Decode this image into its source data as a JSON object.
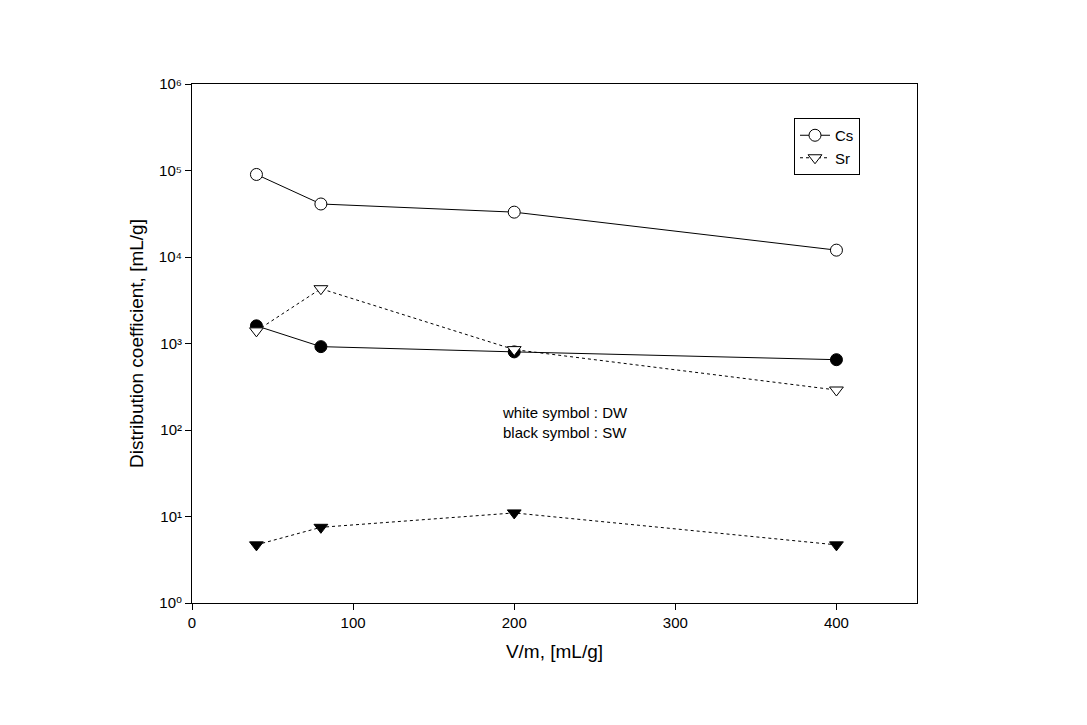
{
  "chart_data": {
    "type": "line",
    "x_label": "V/m, [mL/g]",
    "y_label": "Distribution coefficient, [mL/g]",
    "x": [
      40,
      80,
      200,
      400
    ],
    "series": [
      {
        "name": "Cs",
        "color": "#ffffff",
        "marker": "circle",
        "line_style": "solid",
        "values": [
          90000,
          41000,
          33000,
          12000
        ]
      },
      {
        "color": "#000000",
        "marker": "circle",
        "line_style": "solid",
        "values": [
          1600,
          920,
          800,
          650
        ]
      },
      {
        "name": "Sr",
        "color": "#ffffff",
        "marker": "triangle-down",
        "line_style": "dot",
        "values": [
          1400,
          4300,
          850,
          290
        ]
      },
      {
        "color": "#000000",
        "marker": "triangle-down",
        "line_style": "dot",
        "values": [
          4.7,
          7.5,
          11,
          4.7
        ]
      }
    ],
    "annotations": [
      "white symbol : DW",
      "black symbol : SW"
    ],
    "xlim": [
      0,
      450
    ],
    "xticks": [
      0,
      100,
      200,
      300,
      400
    ],
    "ylim": [
      1,
      1000000
    ],
    "yticks": [
      {
        "value": 1,
        "label": "10⁰"
      },
      {
        "value": 10,
        "label": "10¹"
      },
      {
        "value": 100,
        "label": "10²"
      },
      {
        "value": 1000,
        "label": "10³"
      },
      {
        "value": 10000,
        "label": "10⁴"
      },
      {
        "value": 100000,
        "label": "10⁵"
      },
      {
        "value": 1000000,
        "label": "10⁶"
      }
    ],
    "log": "y",
    "grid": false,
    "legend": "upper right"
  }
}
